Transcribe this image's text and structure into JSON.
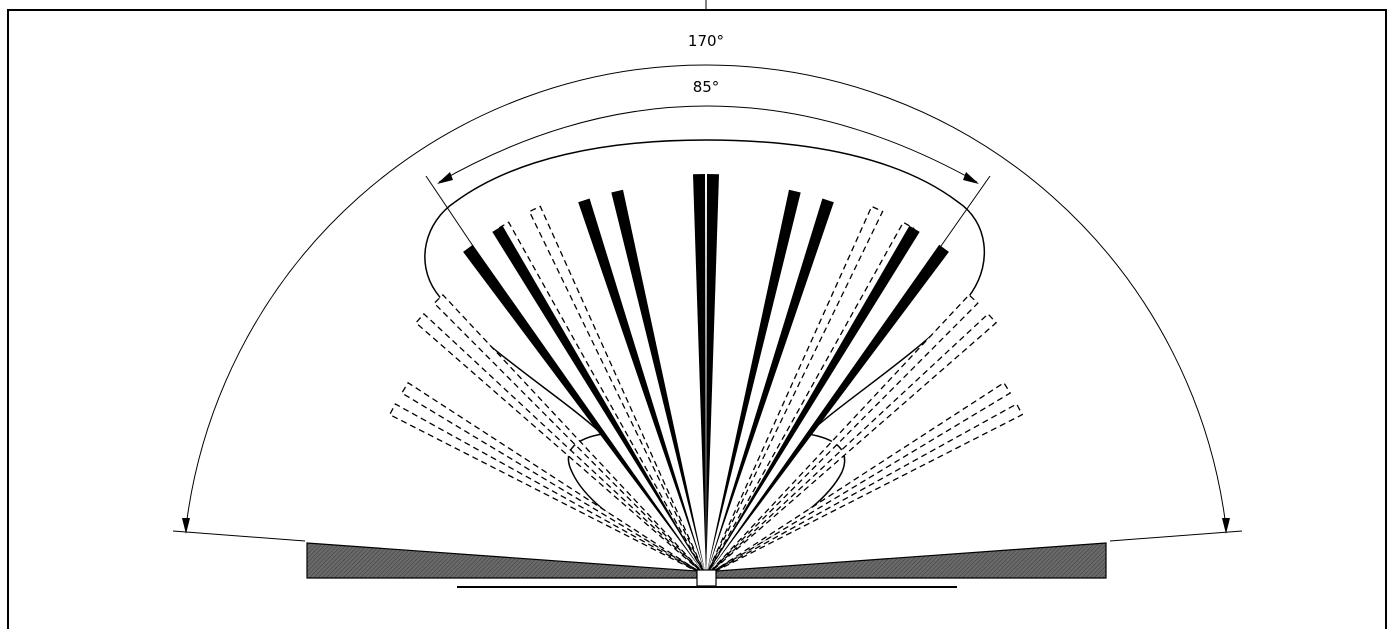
{
  "diagram": {
    "outer_angle_label": "170°",
    "inner_angle_label": "85°",
    "outer_angle_deg": 170,
    "inner_angle_deg": 85,
    "solid_beam_angles_deg": [
      -36,
      -31,
      -18,
      -13,
      -1,
      1,
      13,
      18,
      31,
      36
    ],
    "dashed_beam_angles_deg": [
      -62,
      -58,
      -48,
      -44,
      -30,
      -25,
      25,
      30,
      44,
      48,
      58,
      62
    ],
    "colors": {
      "line": "#000000",
      "base": "#5a5a5a",
      "background": "#ffffff"
    }
  }
}
